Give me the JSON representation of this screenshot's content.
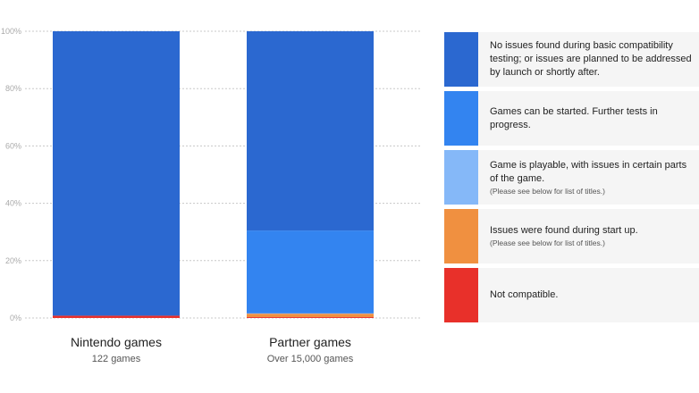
{
  "chart_data": {
    "type": "bar",
    "stacked": true,
    "categories": [
      "Nintendo games",
      "Partner games"
    ],
    "category_subtitles": [
      "122 games",
      "Over 15,000 games"
    ],
    "ylim": [
      0,
      100
    ],
    "yticks": [
      "0%",
      "20%",
      "40%",
      "60%",
      "80%",
      "100%"
    ],
    "grid": true,
    "legend_position": "right",
    "series": [
      {
        "name": "Not compatible.",
        "color": "#e8302a",
        "values": [
          0.8,
          0.3
        ]
      },
      {
        "name": "Issues were found during start up.",
        "note": "(Please see below for list of titles.)",
        "color": "#f09040",
        "values": [
          0,
          1.2
        ]
      },
      {
        "name": "Game is playable, with issues in certain parts of the game.",
        "note": "(Please see below for list of titles.)",
        "color": "#85b8f8",
        "values": [
          0,
          0.1
        ]
      },
      {
        "name": "Games can be started. Further tests in progress.",
        "color": "#3384f0",
        "values": [
          0,
          28.9
        ]
      },
      {
        "name": "No issues found during basic compatibility testing; or issues are planned to be addressed by launch or shortly after.",
        "color": "#2b68d0",
        "values": [
          99.2,
          69.5
        ]
      }
    ]
  },
  "legend_order": [
    4,
    3,
    2,
    1,
    0
  ]
}
